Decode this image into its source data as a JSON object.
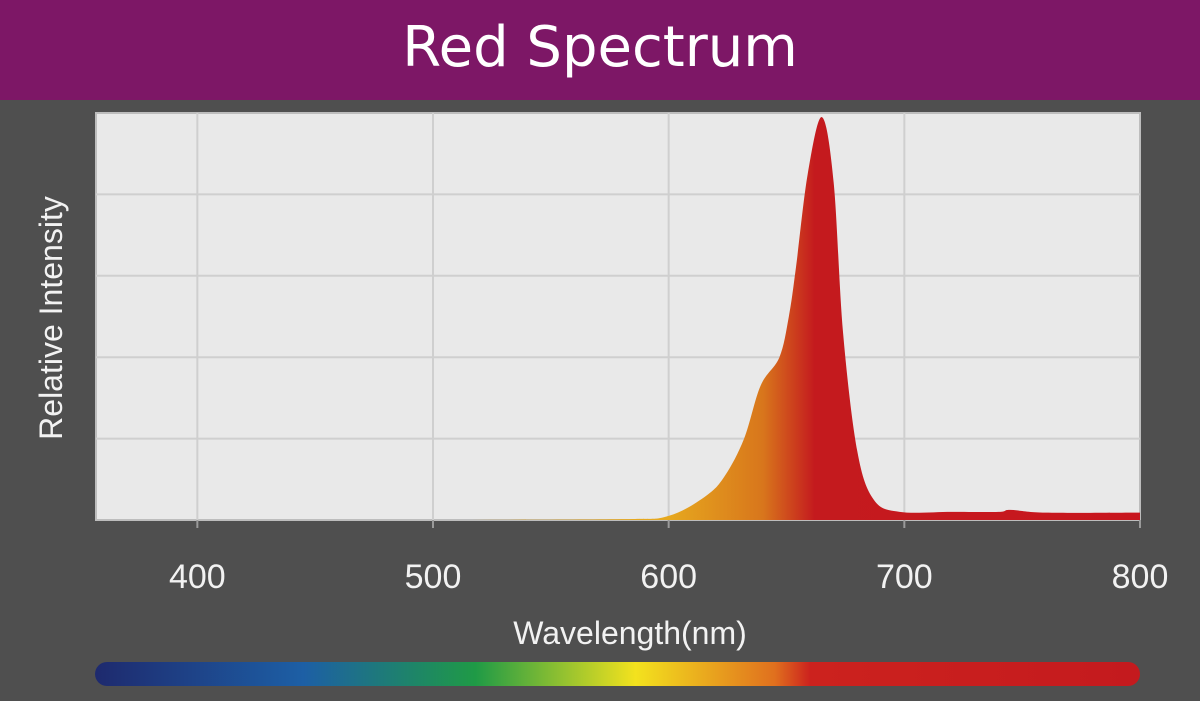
{
  "header": {
    "title": "Red Spectrum"
  },
  "chart_data": {
    "type": "area",
    "title": "Red Spectrum",
    "xlabel": "Wavelength(nm)",
    "ylabel": "Relative Intensity",
    "xlim": [
      357,
      800
    ],
    "ylim": [
      0,
      1
    ],
    "xticks": [
      400,
      500,
      600,
      700,
      800
    ],
    "yticks_unlabeled": [
      0,
      0.2,
      0.4,
      0.6,
      0.8,
      1.0
    ],
    "grid": true,
    "x": [
      357,
      400,
      500,
      580,
      600,
      616,
      624,
      632,
      639,
      647,
      651,
      654,
      659,
      665,
      670,
      674,
      680,
      687,
      698,
      720,
      740,
      745,
      760,
      800
    ],
    "y": [
      0,
      0,
      0,
      0.002,
      0.01,
      0.06,
      0.11,
      0.2,
      0.33,
      0.4,
      0.5,
      0.62,
      0.85,
      0.99,
      0.83,
      0.46,
      0.17,
      0.05,
      0.02,
      0.02,
      0.02,
      0.025,
      0.018,
      0.018
    ],
    "colors": {
      "title_bar": "#7d1766",
      "background": "#4f4f4f",
      "plot_background": "#e9e9e9",
      "grid": "#cfcfcf",
      "fill_gradient": [
        [
          600,
          "#e6a81e"
        ],
        [
          640,
          "#d8761c"
        ],
        [
          662,
          "#c41a1e"
        ],
        [
          800,
          "#c8161e"
        ]
      ],
      "spectrum_bar": [
        [
          357,
          "#1e2a6e"
        ],
        [
          445,
          "#1d5fa5"
        ],
        [
          518,
          "#1f9a46"
        ],
        [
          586,
          "#f3e21e"
        ],
        [
          645,
          "#e0701e"
        ],
        [
          660,
          "#cc221e"
        ],
        [
          800,
          "#c41a1e"
        ]
      ]
    }
  }
}
